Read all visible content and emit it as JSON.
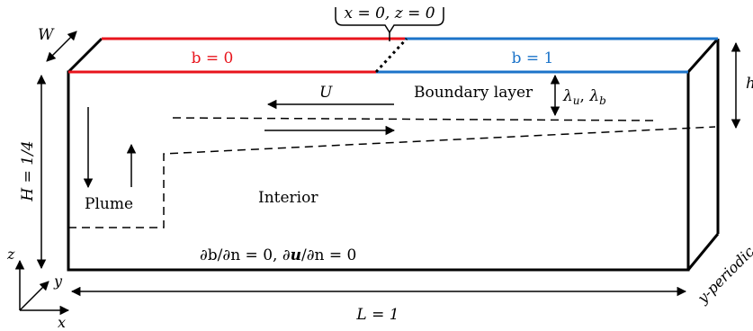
{
  "labels": {
    "origin": "x = 0, z = 0",
    "width": "W",
    "b_left": "b = 0",
    "b_right": "b = 1",
    "height_H": "H = 1/4",
    "h_right": "h",
    "U": "U",
    "boundary_layer": "Boundary layer",
    "lambda": "λ",
    "lambda_u_sub": "u",
    "lambda_sep": ", ",
    "lambda_b_sub": "b",
    "plume": "Plume",
    "interior": "Interior",
    "bc_part1": "∂b/∂n = 0,  ∂",
    "bc_u": "u",
    "bc_part2": "/∂n = 0",
    "length_L": "L = 1",
    "y_periodic": "y-periodic",
    "axis_z": "z",
    "axis_y": "y",
    "axis_x": "x"
  },
  "colors": {
    "cold_edge": "#e8141c",
    "hot_edge": "#1b73c9",
    "ink": "#000000"
  }
}
